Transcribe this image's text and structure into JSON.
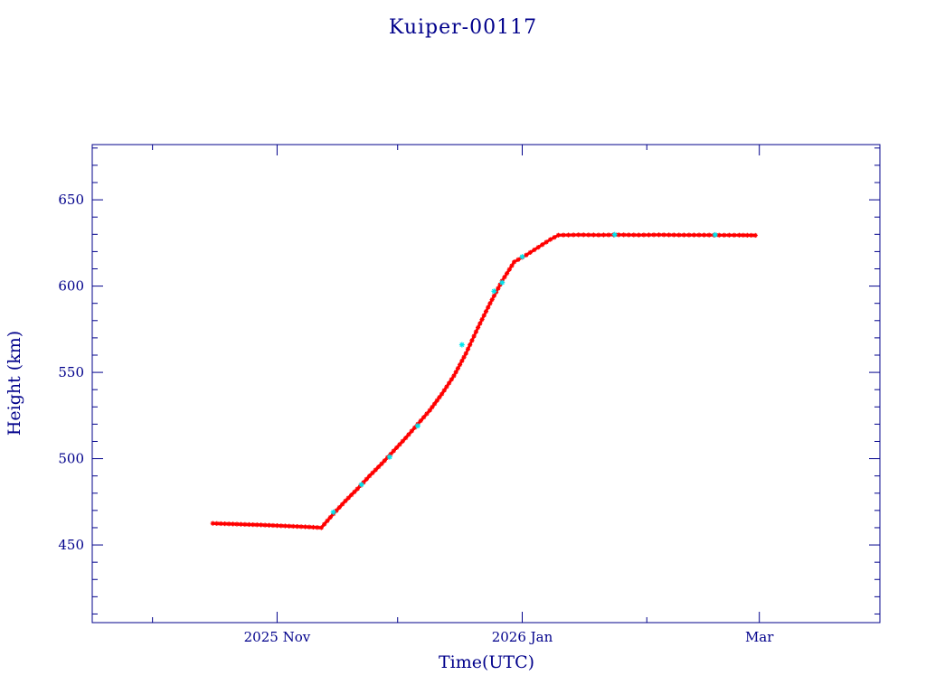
{
  "chart_data": {
    "type": "scatter",
    "title": "Kuiper-00117",
    "xlabel": "Time(UTC)",
    "ylabel": "Height (km)",
    "x_axis": "date",
    "xlim": [
      "2025-09-16",
      "2026-03-31"
    ],
    "ylim": [
      405,
      682
    ],
    "x_ticks": [
      {
        "date": "2025-11-01",
        "label": "2025 Nov"
      },
      {
        "date": "2026-01-01",
        "label": "2026 Jan"
      },
      {
        "date": "2026-03-01",
        "label": "Mar"
      }
    ],
    "x_minor_ticks": [
      "2025-10-01",
      "2025-12-01",
      "2026-02-01"
    ],
    "y_ticks": [
      450,
      500,
      550,
      600,
      650
    ],
    "y_minor_step": 10,
    "grid": false,
    "legend": "none",
    "colors": {
      "axes": "#00008b",
      "series_primary": "#ff0000",
      "series_secondary": "#00e5ee",
      "background": "#ffffff"
    },
    "series": [
      {
        "color": "#ff0000",
        "marker": "asterisk",
        "points": [
          {
            "x": "2025-10-16",
            "y": 462.5
          },
          {
            "x": "2025-10-20",
            "y": 462.2
          },
          {
            "x": "2025-10-24",
            "y": 461.9
          },
          {
            "x": "2025-10-28",
            "y": 461.6
          },
          {
            "x": "2025-11-01",
            "y": 461.2
          },
          {
            "x": "2025-11-05",
            "y": 460.8
          },
          {
            "x": "2025-11-09",
            "y": 460.4
          },
          {
            "x": "2025-11-12",
            "y": 460.0
          },
          {
            "x": "2025-11-15",
            "y": 468.0
          },
          {
            "x": "2025-11-18",
            "y": 475.5
          },
          {
            "x": "2025-11-21",
            "y": 482.5
          },
          {
            "x": "2025-11-24",
            "y": 490.0
          },
          {
            "x": "2025-11-27",
            "y": 497.0
          },
          {
            "x": "2025-11-30",
            "y": 504.5
          },
          {
            "x": "2025-12-03",
            "y": 512.0
          },
          {
            "x": "2025-12-06",
            "y": 520.0
          },
          {
            "x": "2025-12-09",
            "y": 528.0
          },
          {
            "x": "2025-12-12",
            "y": 537.5
          },
          {
            "x": "2025-12-15",
            "y": 548.0
          },
          {
            "x": "2025-12-18",
            "y": 561.0
          },
          {
            "x": "2025-12-21",
            "y": 576.0
          },
          {
            "x": "2025-12-24",
            "y": 590.0
          },
          {
            "x": "2025-12-27",
            "y": 603.0
          },
          {
            "x": "2025-12-30",
            "y": 614.0
          },
          {
            "x": "2026-01-02",
            "y": 618.0
          },
          {
            "x": "2026-01-05",
            "y": 622.5
          },
          {
            "x": "2026-01-08",
            "y": 627.0
          },
          {
            "x": "2026-01-10",
            "y": 629.5
          },
          {
            "x": "2026-01-15",
            "y": 629.7
          },
          {
            "x": "2026-01-20",
            "y": 629.6
          },
          {
            "x": "2026-01-25",
            "y": 629.7
          },
          {
            "x": "2026-01-30",
            "y": 629.6
          },
          {
            "x": "2026-02-04",
            "y": 629.7
          },
          {
            "x": "2026-02-09",
            "y": 629.6
          },
          {
            "x": "2026-02-14",
            "y": 629.6
          },
          {
            "x": "2026-02-19",
            "y": 629.5
          },
          {
            "x": "2026-02-24",
            "y": 629.5
          },
          {
            "x": "2026-02-28",
            "y": 629.4
          }
        ]
      },
      {
        "color": "#00e5ee",
        "marker": "asterisk",
        "points": [
          {
            "x": "2025-11-15",
            "y": 469.0
          },
          {
            "x": "2025-11-22",
            "y": 485.0
          },
          {
            "x": "2025-11-29",
            "y": 501.0
          },
          {
            "x": "2025-12-06",
            "y": 519.0
          },
          {
            "x": "2025-12-17",
            "y": 566.0
          },
          {
            "x": "2025-12-25",
            "y": 597.0
          },
          {
            "x": "2025-12-27",
            "y": 602.0
          },
          {
            "x": "2026-01-01",
            "y": 617.0
          },
          {
            "x": "2026-01-24",
            "y": 629.8
          },
          {
            "x": "2026-02-18",
            "y": 629.7
          }
        ]
      }
    ]
  }
}
